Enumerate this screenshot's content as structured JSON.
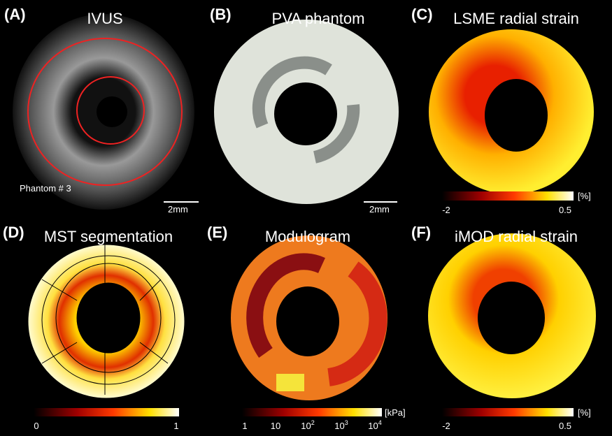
{
  "panels": [
    {
      "label": "(A)",
      "title": "IVUS",
      "note": "Phantom # 3",
      "scale_bar": "2mm"
    },
    {
      "label": "(B)",
      "title": "PVA phantom",
      "scale_bar": "2mm"
    },
    {
      "label": "(C)",
      "title": "LSME radial strain",
      "colorbar": {
        "unit": "[%]",
        "ticks": [
          "-2",
          "0.5"
        ]
      }
    },
    {
      "label": "(D)",
      "title": "MST segmentation",
      "colorbar": {
        "ticks": [
          "0",
          "1"
        ]
      }
    },
    {
      "label": "(E)",
      "title": "Modulogram",
      "colorbar": {
        "unit": "[kPa]",
        "ticks": [
          {
            "base": "1"
          },
          {
            "base": "10"
          },
          {
            "base": "10",
            "exp": "2"
          },
          {
            "base": "10",
            "exp": "3"
          },
          {
            "base": "10",
            "exp": "4"
          }
        ]
      }
    },
    {
      "label": "(F)",
      "title": "iMOD radial strain",
      "colorbar": {
        "unit": "[%]",
        "ticks": [
          "-2",
          "0.5"
        ]
      }
    }
  ]
}
